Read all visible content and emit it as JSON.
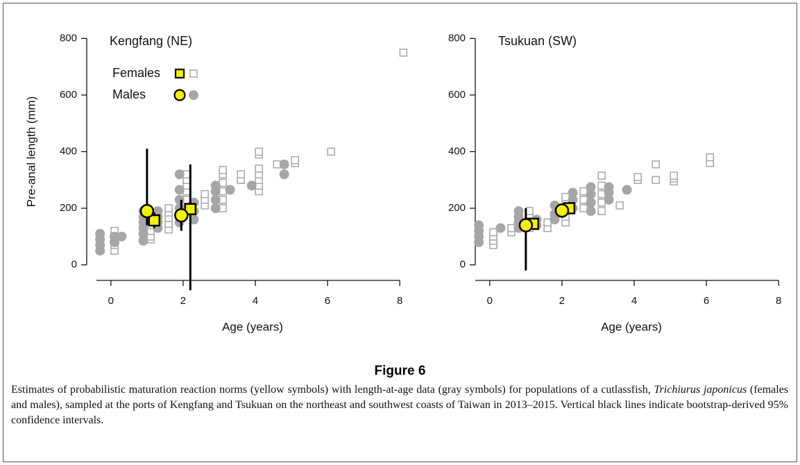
{
  "chart_data": [
    {
      "type": "scatter",
      "title": "Kengfang (NE)",
      "x_label": "Age (years)",
      "y_label": "Pre-anal length (mm)",
      "xlim": [
        -0.4,
        8.4
      ],
      "ylim": [
        -50,
        850
      ],
      "xticks": [
        0,
        2,
        4,
        6,
        8
      ],
      "yticks": [
        0,
        200,
        400,
        600,
        800
      ],
      "legend": "top-left",
      "series": [
        {
          "name": "Females",
          "marker": "square",
          "color": "#a6a6a6",
          "pmrn_color": "#f2f200",
          "x": [
            0.1,
            0.1,
            0.1,
            0.1,
            0.1,
            0.9,
            0.9,
            1.1,
            1.1,
            1.1,
            1.1,
            1.1,
            1.1,
            1.6,
            1.6,
            1.6,
            1.6,
            1.6,
            2.1,
            2.1,
            2.1,
            2.1,
            2.1,
            2.1,
            2.6,
            2.6,
            2.6,
            3.1,
            3.1,
            3.1,
            3.1,
            3.1,
            3.1,
            3.6,
            3.6,
            4.1,
            4.1,
            4.1,
            4.1,
            4.1,
            4.1,
            4.1,
            4.6,
            5.1,
            5.1,
            6.1,
            8.1
          ],
          "values": [
            50,
            70,
            90,
            105,
            120,
            95,
            105,
            90,
            100,
            120,
            140,
            160,
            180,
            125,
            145,
            165,
            185,
            200,
            200,
            230,
            260,
            280,
            300,
            320,
            210,
            230,
            250,
            200,
            230,
            260,
            290,
            320,
            335,
            300,
            320,
            260,
            280,
            300,
            320,
            340,
            390,
            400,
            355,
            360,
            370,
            400,
            750
          ],
          "pmrn_x": [
            1.2,
            2.2
          ],
          "pmrn_values": [
            157,
            197
          ],
          "ci_low": [
            130,
            -90
          ],
          "ci_high": [
            185,
            355
          ]
        },
        {
          "name": "Males",
          "marker": "circle",
          "color": "#a6a6a6",
          "pmrn_color": "#f2f200",
          "x": [
            -0.3,
            -0.3,
            -0.3,
            -0.3,
            0.1,
            0.1,
            0.3,
            0.9,
            0.9,
            0.9,
            0.9,
            0.9,
            0.9,
            1.3,
            1.3,
            1.3,
            1.3,
            1.9,
            1.9,
            1.9,
            1.9,
            1.9,
            1.9,
            2.3,
            2.3,
            2.3,
            2.9,
            2.9,
            2.9,
            2.9,
            3.3,
            3.9,
            4.8,
            4.8
          ],
          "values": [
            50,
            70,
            90,
            110,
            80,
            100,
            100,
            85,
            110,
            130,
            150,
            170,
            190,
            130,
            150,
            170,
            190,
            150,
            180,
            200,
            230,
            265,
            320,
            160,
            190,
            220,
            200,
            230,
            260,
            280,
            265,
            280,
            320,
            355
          ],
          "pmrn_x": [
            1.0,
            1.95
          ],
          "pmrn_values": [
            190,
            175
          ],
          "ci_low": [
            140,
            120
          ],
          "ci_high": [
            410,
            230
          ]
        }
      ]
    },
    {
      "type": "scatter",
      "title": "Tsukuan (SW)",
      "x_label": "Age (years)",
      "xlim": [
        -0.4,
        8.4
      ],
      "ylim": [
        -50,
        850
      ],
      "xticks": [
        0,
        2,
        4,
        6,
        8
      ],
      "yticks": [
        0,
        200,
        400,
        600,
        800
      ],
      "series": [
        {
          "marker": "square",
          "color": "#a6a6a6",
          "pmrn_color": "#f2f200",
          "x": [
            0.1,
            0.1,
            0.1,
            0.1,
            0.6,
            0.6,
            1.1,
            1.1,
            1.1,
            1.1,
            1.6,
            1.6,
            2.1,
            2.1,
            2.1,
            2.1,
            2.1,
            2.6,
            2.6,
            2.6,
            3.1,
            3.1,
            3.1,
            3.1,
            3.1,
            3.6,
            4.1,
            4.1,
            4.6,
            4.6,
            5.1,
            5.1,
            5.1,
            6.1,
            6.1
          ],
          "values": [
            70,
            85,
            100,
            115,
            115,
            130,
            130,
            150,
            170,
            190,
            130,
            150,
            150,
            170,
            190,
            215,
            240,
            200,
            230,
            260,
            190,
            220,
            250,
            280,
            315,
            210,
            300,
            310,
            300,
            355,
            295,
            305,
            315,
            360,
            380
          ],
          "pmrn_x": [
            1.2,
            2.2
          ],
          "pmrn_values": [
            145,
            200
          ],
          "ci_low": [
            135,
            190
          ],
          "ci_high": [
            155,
            210
          ]
        },
        {
          "marker": "circle",
          "color": "#a6a6a6",
          "pmrn_color": "#f2f200",
          "x": [
            -0.3,
            -0.3,
            -0.3,
            -0.3,
            0.3,
            0.8,
            0.8,
            0.8,
            0.8,
            1.3,
            1.3,
            1.8,
            1.8,
            1.8,
            2.3,
            2.3,
            2.3,
            2.8,
            2.8,
            2.8,
            2.8,
            3.3,
            3.3,
            3.3,
            3.8
          ],
          "values": [
            80,
            100,
            120,
            140,
            130,
            130,
            150,
            170,
            190,
            140,
            160,
            160,
            180,
            210,
            200,
            230,
            255,
            190,
            220,
            250,
            275,
            230,
            255,
            275,
            265
          ],
          "pmrn_x": [
            1.0,
            2.0
          ],
          "pmrn_values": [
            140,
            192
          ],
          "ci_low": [
            -20,
            180
          ],
          "ci_high": [
            200,
            205
          ]
        }
      ]
    }
  ],
  "figure_label": "Figure 6",
  "caption": [
    "Estimates of probabilistic maturation reaction norms (yellow symbols) with length-at-age data (gray symbols) for populations of a cutlassfish, ",
    "Trichiurus japonicus",
    " (females and males), sampled at the ports of Kengfang and Tsukuan on the northeast and southwest coasts of Taiwan in 2013–2015. Vertical black lines indicate bootstrap-derived 95% confidence intervals."
  ]
}
